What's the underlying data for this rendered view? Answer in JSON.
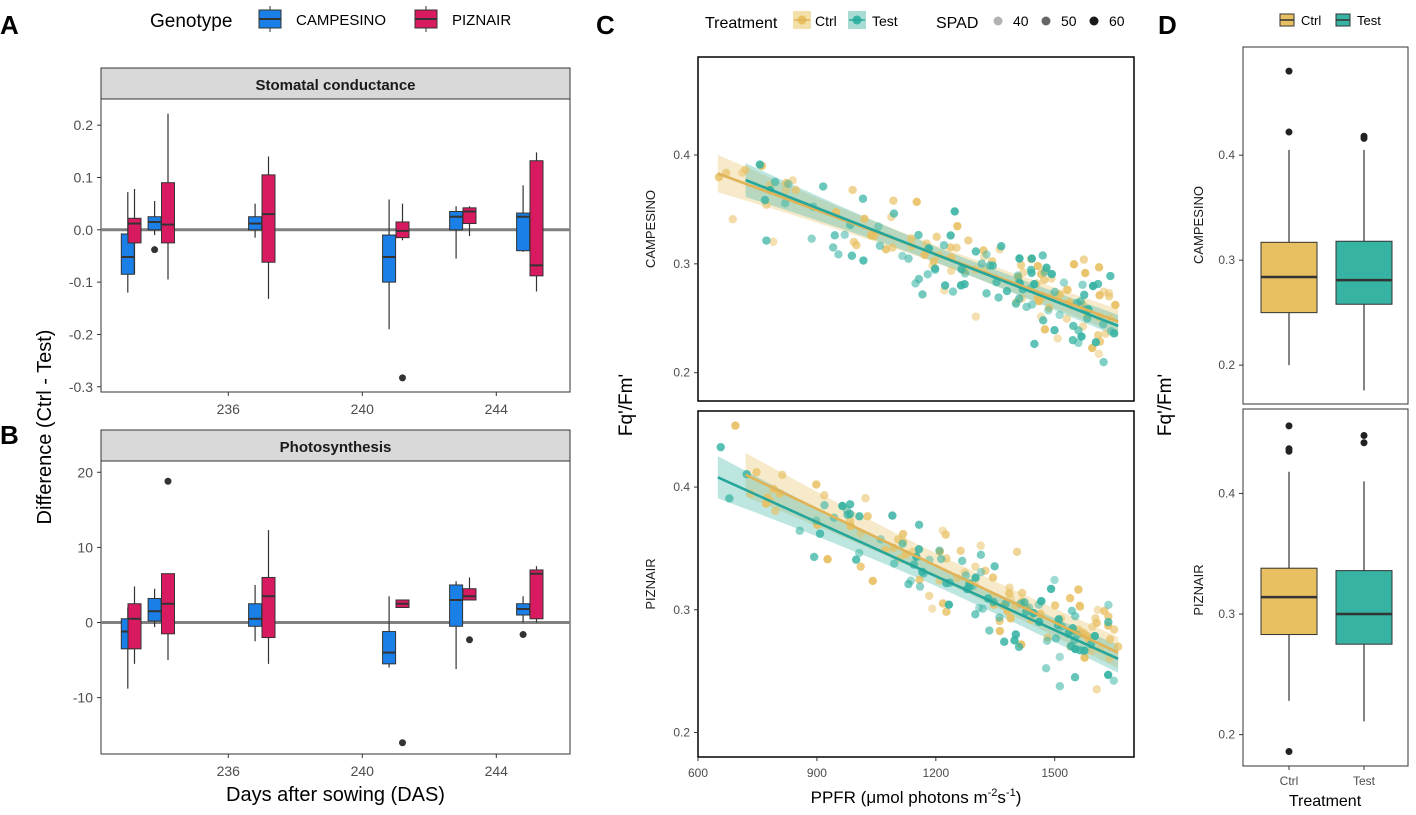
{
  "panel_labels": {
    "a": "A",
    "b": "B",
    "c": "C",
    "d": "D"
  },
  "colors": {
    "campesino": "#1a7fe6",
    "piznair": "#d81b60",
    "ctrl": "#e8c062",
    "test": "#36b3a3",
    "ctrl_line": "#e0b357",
    "test_line": "#26a69a",
    "strip": "#d9d9d9",
    "zero_line": "#808080"
  },
  "chart_data": [
    {
      "id": "A",
      "type": "box",
      "title": "Stomatal conductance",
      "legend_title": "Genotype",
      "legend": [
        "CAMPESINO",
        "PIZNAIR"
      ],
      "xlim": [
        232.2,
        246.2
      ],
      "xticks": [
        236,
        240,
        244
      ],
      "ylim": [
        -0.31,
        0.25
      ],
      "yticks": [
        0.2,
        0.1,
        0.0,
        -0.1,
        -0.2,
        -0.3
      ],
      "ytick_labels": [
        "0.2",
        "0.1",
        "0.0",
        "-0.1",
        "-0.2",
        "-0.3"
      ],
      "hline": 0,
      "boxes": [
        {
          "x": 233.0,
          "g": 0,
          "q1": -0.085,
          "med": -0.052,
          "q3": -0.008,
          "wlo": -0.12,
          "whi": 0.072,
          "out": []
        },
        {
          "x": 233.8,
          "g": 0,
          "q1": 0.0,
          "med": 0.015,
          "q3": 0.025,
          "wlo": -0.01,
          "whi": 0.055,
          "out": [
            -0.038
          ]
        },
        {
          "x": 233.2,
          "g": 1,
          "q1": -0.025,
          "med": 0.012,
          "q3": 0.022,
          "wlo": -0.085,
          "whi": 0.078,
          "out": []
        },
        {
          "x": 234.2,
          "g": 1,
          "q1": -0.025,
          "med": 0.01,
          "q3": 0.09,
          "wlo": -0.095,
          "whi": 0.222,
          "out": []
        },
        {
          "x": 236.8,
          "g": 0,
          "q1": 0.0,
          "med": 0.012,
          "q3": 0.025,
          "wlo": -0.015,
          "whi": 0.05,
          "out": []
        },
        {
          "x": 237.2,
          "g": 1,
          "q1": -0.062,
          "med": 0.03,
          "q3": 0.105,
          "wlo": -0.132,
          "whi": 0.14,
          "out": []
        },
        {
          "x": 240.8,
          "g": 0,
          "q1": -0.1,
          "med": -0.052,
          "q3": -0.01,
          "wlo": -0.19,
          "whi": 0.058,
          "out": []
        },
        {
          "x": 241.2,
          "g": 1,
          "q1": -0.015,
          "med": -0.002,
          "q3": 0.015,
          "wlo": -0.02,
          "whi": 0.05,
          "out": [
            -0.283
          ]
        },
        {
          "x": 242.8,
          "g": 0,
          "q1": 0.0,
          "med": 0.025,
          "q3": 0.035,
          "wlo": -0.055,
          "whi": 0.045,
          "out": []
        },
        {
          "x": 243.2,
          "g": 1,
          "q1": 0.012,
          "med": 0.035,
          "q3": 0.042,
          "wlo": -0.012,
          "whi": 0.045,
          "out": []
        },
        {
          "x": 244.8,
          "g": 0,
          "q1": -0.04,
          "med": 0.025,
          "q3": 0.032,
          "wlo": -0.042,
          "whi": 0.085,
          "out": []
        },
        {
          "x": 245.2,
          "g": 1,
          "q1": -0.088,
          "med": -0.068,
          "q3": 0.132,
          "wlo": -0.118,
          "whi": 0.148,
          "out": []
        }
      ]
    },
    {
      "id": "B",
      "type": "box",
      "title": "Photosynthesis",
      "xlim": [
        232.2,
        246.2
      ],
      "xticks": [
        236,
        240,
        244
      ],
      "xtick_labels": [
        "236",
        "240",
        "244"
      ],
      "xlabel": "Days after sowing (DAS)",
      "ylim": [
        -17.5,
        21.5
      ],
      "yticks": [
        20,
        10,
        0,
        -10
      ],
      "ytick_labels": [
        "20",
        "10",
        "0",
        "-10"
      ],
      "hline": 0,
      "boxes": [
        {
          "x": 233.0,
          "g": 0,
          "q1": -3.5,
          "med": -1.2,
          "q3": 0.5,
          "wlo": -8.8,
          "whi": 2.0,
          "out": []
        },
        {
          "x": 233.8,
          "g": 0,
          "q1": 0.2,
          "med": 1.5,
          "q3": 3.2,
          "wlo": -0.6,
          "whi": 4.5,
          "out": []
        },
        {
          "x": 233.2,
          "g": 1,
          "q1": -3.5,
          "med": 0.5,
          "q3": 2.5,
          "wlo": -5.5,
          "whi": 4.8,
          "out": []
        },
        {
          "x": 234.2,
          "g": 1,
          "q1": -1.5,
          "med": 2.5,
          "q3": 6.5,
          "wlo": -5.0,
          "whi": 6.5,
          "out": [
            18.8
          ]
        },
        {
          "x": 236.8,
          "g": 0,
          "q1": -0.5,
          "med": 0.5,
          "q3": 2.5,
          "wlo": -2.5,
          "whi": 5.0,
          "out": []
        },
        {
          "x": 237.2,
          "g": 1,
          "q1": -2.0,
          "med": 3.5,
          "q3": 6.0,
          "wlo": -5.5,
          "whi": 12.3,
          "out": []
        },
        {
          "x": 240.8,
          "g": 0,
          "q1": -5.5,
          "med": -4.0,
          "q3": -1.2,
          "wlo": -6.0,
          "whi": 3.5,
          "out": []
        },
        {
          "x": 241.2,
          "g": 1,
          "q1": 2.0,
          "med": 2.5,
          "q3": 3.0,
          "wlo": 2.0,
          "whi": 3.0,
          "out": [
            -16.0
          ]
        },
        {
          "x": 242.8,
          "g": 0,
          "q1": -0.5,
          "med": 3.0,
          "q3": 5.0,
          "wlo": -6.2,
          "whi": 5.5,
          "out": []
        },
        {
          "x": 243.2,
          "g": 1,
          "q1": 3.0,
          "med": 3.5,
          "q3": 4.5,
          "wlo": 3.0,
          "whi": 6.0,
          "out": [
            -2.3
          ]
        },
        {
          "x": 244.8,
          "g": 0,
          "q1": 1.0,
          "med": 1.8,
          "q3": 2.5,
          "wlo": 0.0,
          "whi": 3.5,
          "out": [
            -1.6
          ]
        },
        {
          "x": 245.2,
          "g": 1,
          "q1": 0.5,
          "med": 6.5,
          "q3": 7.0,
          "wlo": 0.0,
          "whi": 7.5,
          "out": []
        }
      ]
    },
    {
      "id": "C",
      "type": "scatter",
      "legend_treatment_title": "Treatment",
      "legend_treatment": [
        "Ctrl",
        "Test"
      ],
      "legend_spad_title": "SPAD",
      "legend_spad": [
        "40",
        "50",
        "60"
      ],
      "xlabel_parts": {
        "main": "PPFR (μmol photons m",
        "sup1": "-2",
        "mid": "s",
        "sup2": "-1",
        "end": ")"
      },
      "ylabel": "Fq'/Fm'",
      "xlim": [
        600,
        1700
      ],
      "xticks": [
        600,
        900,
        1200,
        1500
      ],
      "xtick_labels": [
        "600",
        "900",
        "1200",
        "1500"
      ],
      "panels": [
        {
          "strip": "CAMPESINO",
          "ylim": [
            0.174,
            0.49
          ],
          "yticks": [
            0.2,
            0.3,
            0.4
          ],
          "ytick_labels": [
            "0.2",
            "0.3",
            "0.4"
          ],
          "fit": [
            {
              "t": 0,
              "x0": 650,
              "x1": 1660,
              "y0": 0.383,
              "y1": 0.247,
              "b0": 0.022,
              "b1": 0.008
            },
            {
              "t": 1,
              "x0": 720,
              "x1": 1660,
              "y0": 0.377,
              "y1": 0.243,
              "b0": 0.02,
              "b1": 0.007
            }
          ]
        },
        {
          "strip": "PIZNAIR",
          "ylim": [
            0.18,
            0.462
          ],
          "yticks": [
            0.2,
            0.3,
            0.4
          ],
          "ytick_labels": [
            "0.2",
            "0.3",
            "0.4"
          ],
          "fit": [
            {
              "t": 0,
              "x0": 720,
              "x1": 1660,
              "y0": 0.41,
              "y1": 0.265,
              "b0": 0.022,
              "b1": 0.01
            },
            {
              "t": 1,
              "x0": 650,
              "x1": 1660,
              "y0": 0.408,
              "y1": 0.26,
              "b0": 0.022,
              "b1": 0.008
            }
          ]
        }
      ]
    },
    {
      "id": "D",
      "type": "box",
      "legend": [
        "Ctrl",
        "Test"
      ],
      "categories": [
        "Ctrl",
        "Test"
      ],
      "xlabel": "Treatment",
      "ylabel": "Fq'/Fm'",
      "panels": [
        {
          "strip": "CAMPESINO",
          "ylim": [
            0.163,
            0.503
          ],
          "yticks": [
            0.2,
            0.3,
            0.4
          ],
          "ytick_labels": [
            "0.2",
            "0.3",
            "0.4"
          ],
          "boxes": [
            {
              "q1": 0.25,
              "med": 0.284,
              "q3": 0.317,
              "wlo": 0.2,
              "whi": 0.405,
              "out": [
                0.422,
                0.48
              ]
            },
            {
              "q1": 0.258,
              "med": 0.281,
              "q3": 0.318,
              "wlo": 0.176,
              "whi": 0.405,
              "out": [
                0.416,
                0.418
              ]
            }
          ]
        },
        {
          "strip": "PIZNAIR",
          "ylim": [
            0.174,
            0.47
          ],
          "yticks": [
            0.2,
            0.3,
            0.4
          ],
          "ytick_labels": [
            "0.2",
            "0.3",
            "0.4"
          ],
          "boxes": [
            {
              "q1": 0.283,
              "med": 0.314,
              "q3": 0.338,
              "wlo": 0.228,
              "whi": 0.418,
              "out": [
                0.186,
                0.435,
                0.437,
                0.456
              ]
            },
            {
              "q1": 0.275,
              "med": 0.3,
              "q3": 0.336,
              "wlo": 0.211,
              "whi": 0.41,
              "out": [
                0.442,
                0.448
              ]
            }
          ]
        }
      ]
    }
  ],
  "shared_y_label_ab": "Difference (Ctrl - Test)"
}
